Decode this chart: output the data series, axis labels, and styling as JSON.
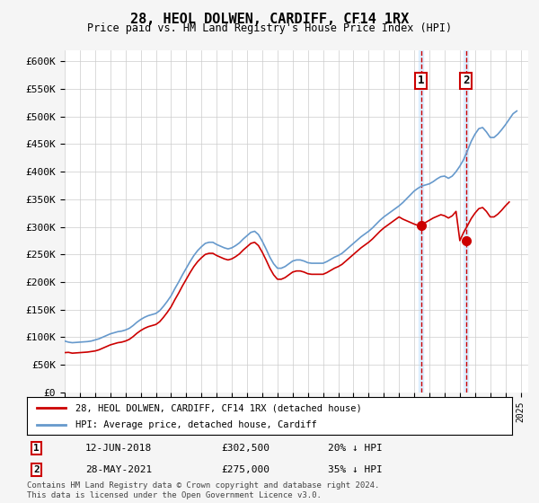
{
  "title": "28, HEOL DOLWEN, CARDIFF, CF14 1RX",
  "subtitle": "Price paid vs. HM Land Registry's House Price Index (HPI)",
  "ylabel_ticks": [
    "£0",
    "£50K",
    "£100K",
    "£150K",
    "£200K",
    "£250K",
    "£300K",
    "£350K",
    "£400K",
    "£450K",
    "£500K",
    "£550K",
    "£600K"
  ],
  "ylim": [
    0,
    620000
  ],
  "ytick_values": [
    0,
    50000,
    100000,
    150000,
    200000,
    250000,
    300000,
    350000,
    400000,
    450000,
    500000,
    550000,
    600000
  ],
  "x_start_year": 1995,
  "x_end_year": 2025,
  "sale1_year": 2018.44,
  "sale1_price": 302500,
  "sale1_label": "1",
  "sale1_date": "12-JUN-2018",
  "sale1_pct": "20% ↓ HPI",
  "sale2_year": 2021.4,
  "sale2_price": 275000,
  "sale2_label": "2",
  "sale2_date": "28-MAY-2021",
  "sale2_pct": "35% ↓ HPI",
  "red_line_color": "#cc0000",
  "blue_line_color": "#6699cc",
  "highlight_color": "#ddeeff",
  "grid_color": "#cccccc",
  "background_color": "#f5f5f5",
  "plot_bg_color": "#ffffff",
  "legend_entry1": "28, HEOL DOLWEN, CARDIFF, CF14 1RX (detached house)",
  "legend_entry2": "HPI: Average price, detached house, Cardiff",
  "footer": "Contains HM Land Registry data © Crown copyright and database right 2024.\nThis data is licensed under the Open Government Licence v3.0.",
  "hpi_data": {
    "years": [
      1995.0,
      1995.25,
      1995.5,
      1995.75,
      1996.0,
      1996.25,
      1996.5,
      1996.75,
      1997.0,
      1997.25,
      1997.5,
      1997.75,
      1998.0,
      1998.25,
      1998.5,
      1998.75,
      1999.0,
      1999.25,
      1999.5,
      1999.75,
      2000.0,
      2000.25,
      2000.5,
      2000.75,
      2001.0,
      2001.25,
      2001.5,
      2001.75,
      2002.0,
      2002.25,
      2002.5,
      2002.75,
      2003.0,
      2003.25,
      2003.5,
      2003.75,
      2004.0,
      2004.25,
      2004.5,
      2004.75,
      2005.0,
      2005.25,
      2005.5,
      2005.75,
      2006.0,
      2006.25,
      2006.5,
      2006.75,
      2007.0,
      2007.25,
      2007.5,
      2007.75,
      2008.0,
      2008.25,
      2008.5,
      2008.75,
      2009.0,
      2009.25,
      2009.5,
      2009.75,
      2010.0,
      2010.25,
      2010.5,
      2010.75,
      2011.0,
      2011.25,
      2011.5,
      2011.75,
      2012.0,
      2012.25,
      2012.5,
      2012.75,
      2013.0,
      2013.25,
      2013.5,
      2013.75,
      2014.0,
      2014.25,
      2014.5,
      2014.75,
      2015.0,
      2015.25,
      2015.5,
      2015.75,
      2016.0,
      2016.25,
      2016.5,
      2016.75,
      2017.0,
      2017.25,
      2017.5,
      2017.75,
      2018.0,
      2018.25,
      2018.5,
      2018.75,
      2019.0,
      2019.25,
      2019.5,
      2019.75,
      2020.0,
      2020.25,
      2020.5,
      2020.75,
      2021.0,
      2021.25,
      2021.5,
      2021.75,
      2022.0,
      2022.25,
      2022.5,
      2022.75,
      2023.0,
      2023.25,
      2023.5,
      2023.75,
      2024.0,
      2024.25,
      2024.5,
      2024.75
    ],
    "values": [
      93000,
      91000,
      90000,
      90500,
      91000,
      91500,
      92000,
      93000,
      95000,
      97000,
      100000,
      103000,
      106000,
      108000,
      110000,
      111000,
      113000,
      116000,
      121000,
      127000,
      132000,
      136000,
      139000,
      141000,
      143000,
      148000,
      156000,
      165000,
      175000,
      188000,
      200000,
      213000,
      225000,
      237000,
      248000,
      257000,
      264000,
      270000,
      272000,
      272000,
      268000,
      265000,
      262000,
      260000,
      262000,
      266000,
      271000,
      278000,
      284000,
      290000,
      292000,
      286000,
      274000,
      260000,
      245000,
      233000,
      225000,
      225000,
      228000,
      233000,
      238000,
      240000,
      240000,
      238000,
      235000,
      234000,
      234000,
      234000,
      234000,
      237000,
      241000,
      245000,
      248000,
      252000,
      258000,
      264000,
      270000,
      276000,
      282000,
      287000,
      292000,
      298000,
      305000,
      312000,
      318000,
      323000,
      328000,
      333000,
      338000,
      344000,
      351000,
      358000,
      365000,
      370000,
      374000,
      376000,
      378000,
      382000,
      387000,
      391000,
      392000,
      388000,
      392000,
      400000,
      410000,
      422000,
      438000,
      455000,
      468000,
      478000,
      480000,
      472000,
      462000,
      462000,
      468000,
      476000,
      485000,
      495000,
      505000,
      510000
    ]
  },
  "price_paid_data": {
    "years": [
      1995.0,
      1995.25,
      1995.5,
      1995.75,
      1996.0,
      1996.25,
      1996.5,
      1996.75,
      1997.0,
      1997.25,
      1997.5,
      1997.75,
      1998.0,
      1998.25,
      1998.5,
      1998.75,
      1999.0,
      1999.25,
      1999.5,
      1999.75,
      2000.0,
      2000.25,
      2000.5,
      2000.75,
      2001.0,
      2001.25,
      2001.5,
      2001.75,
      2002.0,
      2002.25,
      2002.5,
      2002.75,
      2003.0,
      2003.25,
      2003.5,
      2003.75,
      2004.0,
      2004.25,
      2004.5,
      2004.75,
      2005.0,
      2005.25,
      2005.5,
      2005.75,
      2006.0,
      2006.25,
      2006.5,
      2006.75,
      2007.0,
      2007.25,
      2007.5,
      2007.75,
      2008.0,
      2008.25,
      2008.5,
      2008.75,
      2009.0,
      2009.25,
      2009.5,
      2009.75,
      2010.0,
      2010.25,
      2010.5,
      2010.75,
      2011.0,
      2011.25,
      2011.5,
      2011.75,
      2012.0,
      2012.25,
      2012.5,
      2012.75,
      2013.0,
      2013.25,
      2013.5,
      2013.75,
      2014.0,
      2014.25,
      2014.5,
      2014.75,
      2015.0,
      2015.25,
      2015.5,
      2015.75,
      2016.0,
      2016.25,
      2016.5,
      2016.75,
      2017.0,
      2017.25,
      2017.5,
      2017.75,
      2018.0,
      2018.25,
      2018.5,
      2018.75,
      2019.0,
      2019.25,
      2019.5,
      2019.75,
      2020.0,
      2020.25,
      2020.5,
      2020.75,
      2021.0,
      2021.25,
      2021.5,
      2021.75,
      2022.0,
      2022.25,
      2022.5,
      2022.75,
      2023.0,
      2023.25,
      2023.5,
      2023.75,
      2024.0,
      2024.25
    ],
    "values": [
      72000,
      72500,
      71000,
      71500,
      72000,
      72500,
      73000,
      74000,
      75000,
      77000,
      80000,
      83000,
      86000,
      88000,
      90000,
      91000,
      93000,
      96000,
      101000,
      107000,
      112000,
      116000,
      119000,
      121000,
      123000,
      128000,
      136000,
      145000,
      155000,
      168000,
      180000,
      193000,
      205000,
      217000,
      228000,
      237000,
      244000,
      250000,
      252000,
      252000,
      248000,
      245000,
      242000,
      240000,
      242000,
      246000,
      251000,
      258000,
      264000,
      270000,
      272000,
      266000,
      254000,
      240000,
      225000,
      213000,
      205000,
      205000,
      208000,
      213000,
      218000,
      220000,
      220000,
      218000,
      215000,
      214000,
      214000,
      214000,
      214000,
      217000,
      221000,
      225000,
      228000,
      232000,
      238000,
      244000,
      250000,
      256000,
      262000,
      267000,
      272000,
      278000,
      285000,
      292000,
      298000,
      303000,
      308000,
      313000,
      318000,
      314000,
      311000,
      308000,
      305000,
      302500,
      305000,
      308000,
      312000,
      316000,
      319000,
      322000,
      320000,
      316000,
      320000,
      328000,
      275000,
      290000,
      302000,
      315000,
      325000,
      333000,
      335000,
      328000,
      318000,
      318000,
      323000,
      330000,
      338000,
      345000
    ]
  }
}
